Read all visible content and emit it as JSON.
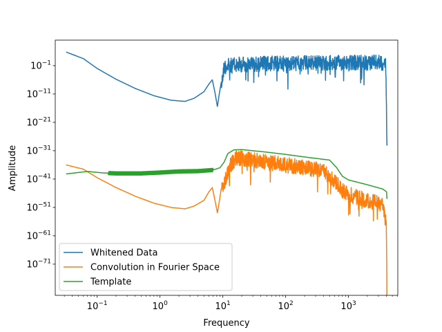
{
  "chart_data": {
    "type": "line",
    "xlabel": "Frequency",
    "ylabel": "Amplitude",
    "xscale": "log",
    "yscale": "log",
    "xlim": [
      0.0215,
      6100
    ],
    "ylim_log10": [
      -82,
      8
    ],
    "x_ticks": [
      {
        "value": 0.1,
        "label": "10",
        "exp": "−1"
      },
      {
        "value": 1,
        "label": "10",
        "exp": "0"
      },
      {
        "value": 10,
        "label": "10",
        "exp": "1"
      },
      {
        "value": 100,
        "label": "10",
        "exp": "2"
      },
      {
        "value": 1000,
        "label": "10",
        "exp": "3"
      }
    ],
    "y_ticks": [
      {
        "value_log10": -1,
        "label": "10",
        "exp": "−1"
      },
      {
        "value_log10": -11,
        "label": "10",
        "exp": "−11"
      },
      {
        "value_log10": -21,
        "label": "10",
        "exp": "−21"
      },
      {
        "value_log10": -31,
        "label": "10",
        "exp": "−31"
      },
      {
        "value_log10": -41,
        "label": "10",
        "exp": "−41"
      },
      {
        "value_log10": -51,
        "label": "10",
        "exp": "−51"
      },
      {
        "value_log10": -61,
        "label": "10",
        "exp": "−61"
      },
      {
        "value_log10": -71,
        "label": "10",
        "exp": "−71"
      }
    ],
    "legend": {
      "position": "lower-left"
    },
    "grid": false,
    "series": [
      {
        "name": "Whitened Data",
        "color": "#1f77b4",
        "noisy_from_x": 9.5,
        "noisy_to_x": 4096,
        "points": [
          [
            0.032,
            3.8
          ],
          [
            0.06,
            1.5
          ],
          [
            0.1,
            -2.0
          ],
          [
            0.2,
            -5.8
          ],
          [
            0.4,
            -9.0
          ],
          [
            0.8,
            -11.6
          ],
          [
            1.5,
            -13.2
          ],
          [
            2.5,
            -13.6
          ],
          [
            3.5,
            -12.5
          ],
          [
            5.0,
            -10.2
          ],
          [
            6.0,
            -7.5
          ],
          [
            6.8,
            -6.0
          ],
          [
            7.5,
            -10.5
          ],
          [
            8.2,
            -15.5
          ],
          [
            8.7,
            -11.5
          ],
          [
            9.5,
            -6.5
          ],
          [
            10.5,
            0.2
          ],
          [
            20,
            1.0
          ],
          [
            50,
            1.2
          ],
          [
            200,
            1.4
          ],
          [
            1000,
            1.5
          ],
          [
            3000,
            1.6
          ],
          [
            3900,
            1.6
          ],
          [
            4000,
            -10.0
          ],
          [
            4096,
            -27.0
          ]
        ]
      },
      {
        "name": "Convolution in Fourier Space",
        "color": "#ff7f0e",
        "noisy_from_x": 9.5,
        "noisy_to_x": 4096,
        "points": [
          [
            0.032,
            -36.0
          ],
          [
            0.06,
            -37.5
          ],
          [
            0.1,
            -40.5
          ],
          [
            0.2,
            -44.0
          ],
          [
            0.4,
            -47.0
          ],
          [
            0.8,
            -49.5
          ],
          [
            1.5,
            -51.0
          ],
          [
            2.5,
            -51.5
          ],
          [
            3.5,
            -50.5
          ],
          [
            5.0,
            -48.5
          ],
          [
            6.0,
            -45.5
          ],
          [
            6.8,
            -44.0
          ],
          [
            7.5,
            -48.5
          ],
          [
            8.2,
            -53.0
          ],
          [
            8.7,
            -49.5
          ],
          [
            9.5,
            -44.0
          ],
          [
            11,
            -40.0
          ],
          [
            13,
            -35.0
          ],
          [
            16,
            -32.0
          ],
          [
            25,
            -32.5
          ],
          [
            50,
            -33.5
          ],
          [
            100,
            -34.5
          ],
          [
            200,
            -35.5
          ],
          [
            400,
            -36.5
          ],
          [
            600,
            -40.0
          ],
          [
            800,
            -43.5
          ],
          [
            1200,
            -45.5
          ],
          [
            2000,
            -47.0
          ],
          [
            3500,
            -48.5
          ],
          [
            4000,
            -55.0
          ],
          [
            4096,
            -78.0
          ]
        ]
      },
      {
        "name": "Template",
        "color": "#2ca02c",
        "noisy_from_x": 0.15,
        "noisy_to_x": 7.0,
        "points": [
          [
            0.032,
            -39.2
          ],
          [
            0.07,
            -38.3
          ],
          [
            0.12,
            -38.8
          ],
          [
            0.2,
            -39.0
          ],
          [
            0.5,
            -39.0
          ],
          [
            1.0,
            -38.7
          ],
          [
            2.0,
            -38.3
          ],
          [
            4.0,
            -38.2
          ],
          [
            7.0,
            -37.8
          ],
          [
            9.0,
            -37.0
          ],
          [
            10.5,
            -35.0
          ],
          [
            12,
            -32.0
          ],
          [
            15,
            -30.7
          ],
          [
            20,
            -30.6
          ],
          [
            50,
            -31.5
          ],
          [
            100,
            -32.3
          ],
          [
            200,
            -33.2
          ],
          [
            500,
            -34.3
          ],
          [
            650,
            -37.0
          ],
          [
            800,
            -40.0
          ],
          [
            1000,
            -41.3
          ],
          [
            2000,
            -43.0
          ],
          [
            3500,
            -44.5
          ],
          [
            4050,
            -45.5
          ],
          [
            4096,
            -48.0
          ]
        ]
      }
    ]
  }
}
